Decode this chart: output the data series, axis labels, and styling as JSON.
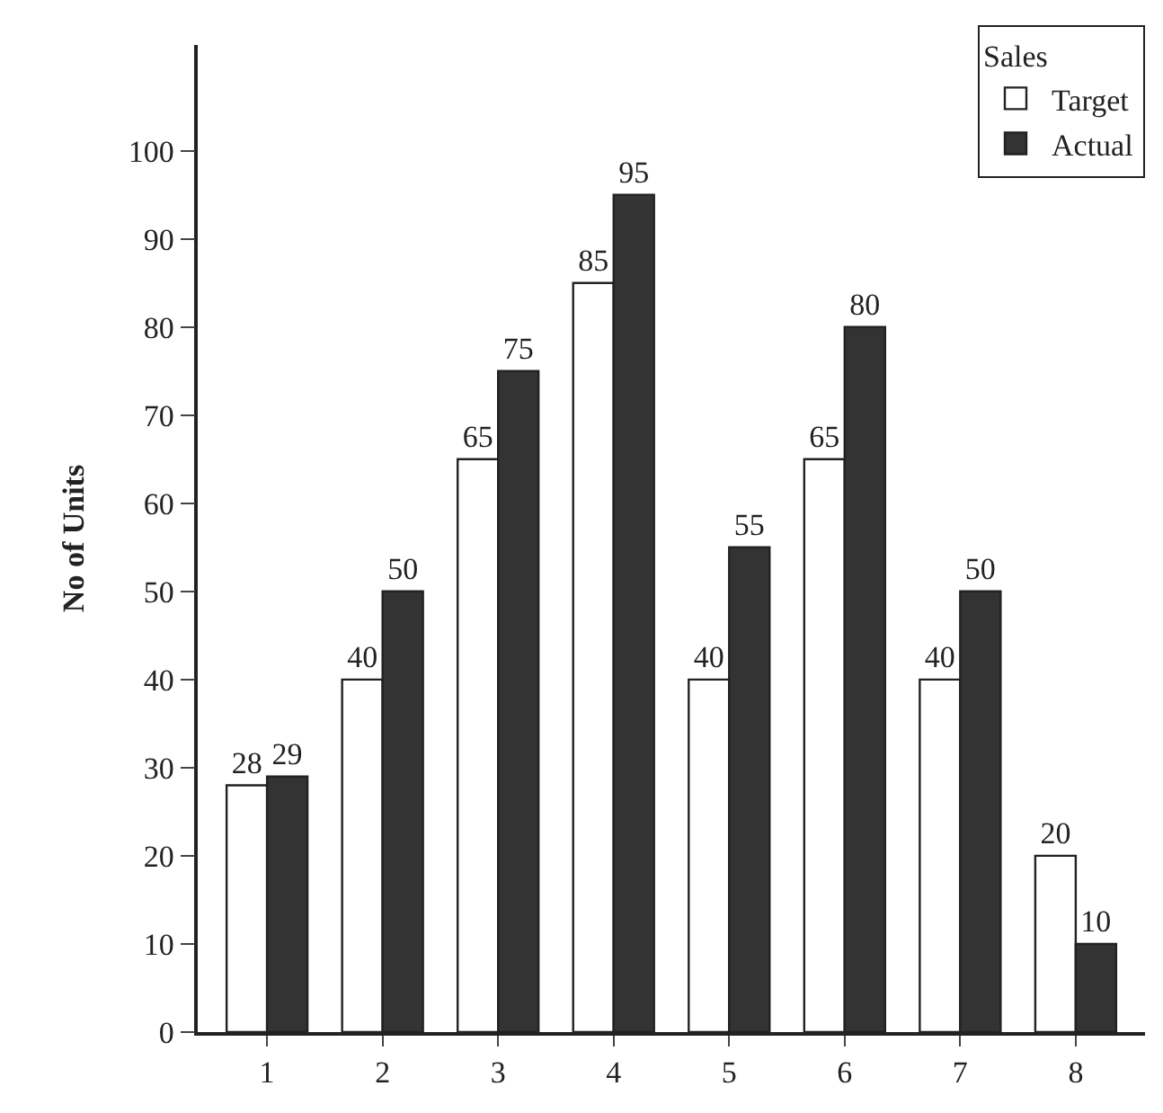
{
  "chart_data": {
    "type": "bar",
    "ylabel": "No of Units",
    "legend_title": "Sales",
    "categories": [
      "1",
      "2",
      "3",
      "4",
      "5",
      "6",
      "7",
      "8"
    ],
    "series": [
      {
        "name": "Target",
        "color": "#ffffff",
        "values": [
          28,
          40,
          65,
          85,
          40,
          65,
          40,
          20
        ]
      },
      {
        "name": "Actual",
        "color": "#333333",
        "values": [
          29,
          50,
          75,
          95,
          55,
          80,
          50,
          10
        ]
      }
    ],
    "ylim": [
      0,
      112
    ],
    "yticks": [
      0,
      10,
      20,
      30,
      40,
      50,
      60,
      70,
      80,
      90,
      100
    ],
    "grid": false,
    "legend": "top right",
    "data_labels": true
  }
}
